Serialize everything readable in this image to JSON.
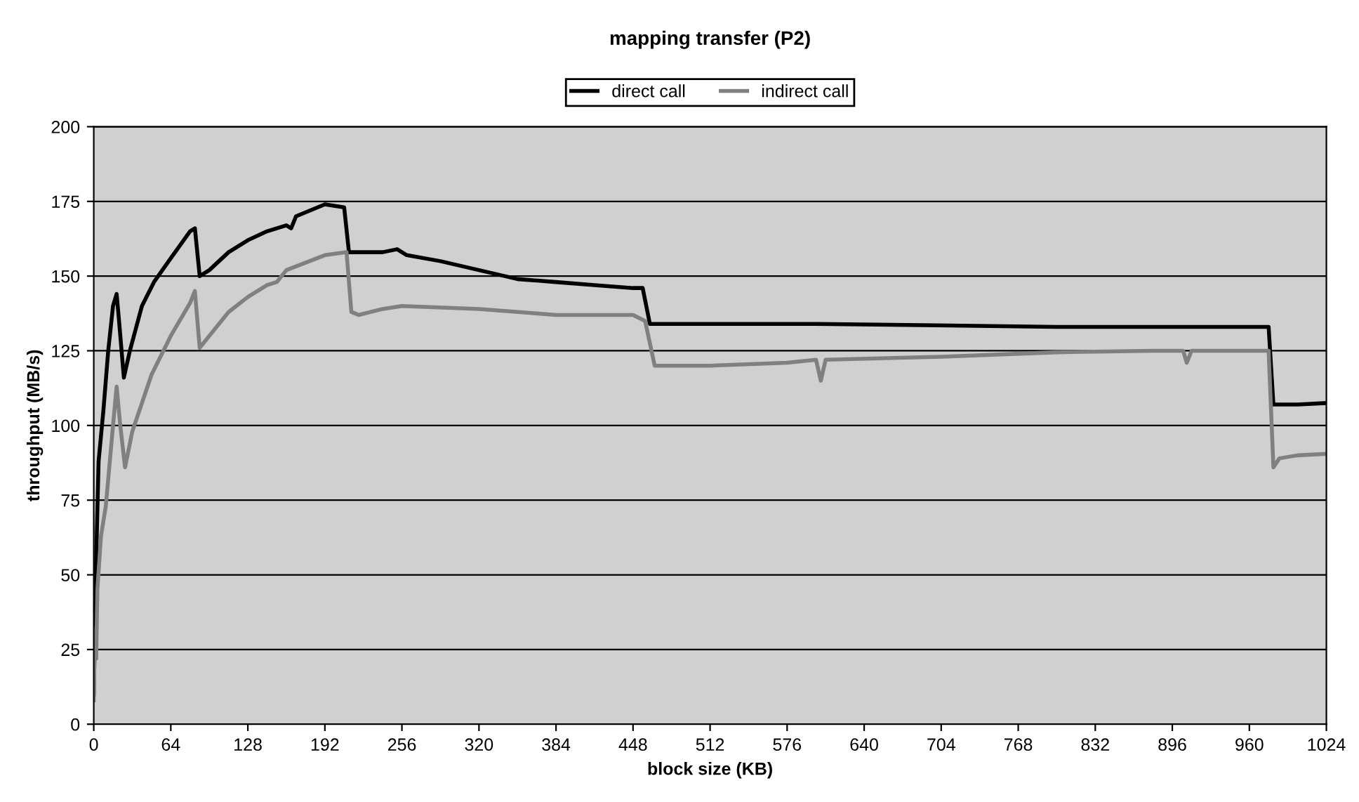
{
  "chart_data": {
    "type": "line",
    "title": "mapping transfer (P2)",
    "xlabel": "block size (KB)",
    "ylabel": "throughput (MB/s)",
    "xlim": [
      0,
      1024
    ],
    "xticks": [
      0,
      64,
      128,
      192,
      256,
      320,
      384,
      448,
      512,
      576,
      640,
      704,
      768,
      832,
      896,
      960,
      1024
    ],
    "ylim": [
      0,
      200
    ],
    "yticks": [
      0,
      25,
      50,
      75,
      100,
      125,
      150,
      175,
      200
    ],
    "grid": "y",
    "legend": "top",
    "marker": "none",
    "line_style": "solid",
    "series": [
      {
        "name": "direct call",
        "color": "#000000",
        "x": [
          0,
          2,
          4,
          8,
          12,
          16,
          19,
          21,
          25,
          30,
          40,
          50,
          64,
          80,
          84,
          88,
          96,
          112,
          128,
          144,
          160,
          164,
          168,
          192,
          208,
          212,
          224,
          240,
          252,
          260,
          288,
          320,
          352,
          384,
          416,
          448,
          456,
          462,
          512,
          600,
          700,
          800,
          900,
          976,
          980,
          1000,
          1024
        ],
        "values": [
          10,
          55,
          88,
          105,
          125,
          140,
          144,
          135,
          116,
          125,
          140,
          148,
          156,
          165,
          166,
          150,
          152,
          158,
          162,
          165,
          167,
          166,
          170,
          174,
          173,
          158,
          158,
          158,
          159,
          157,
          155,
          152,
          149,
          148,
          147,
          146,
          146,
          134,
          134,
          134,
          133.5,
          133,
          133,
          133,
          107,
          107,
          107.5
        ]
      },
      {
        "name": "indirect call",
        "color": "#808080",
        "x": [
          0,
          1,
          2,
          3,
          6,
          10,
          16,
          19,
          22,
          26,
          32,
          48,
          64,
          80,
          84,
          88,
          96,
          112,
          128,
          144,
          152,
          160,
          192,
          210,
          214,
          220,
          240,
          256,
          320,
          384,
          448,
          458,
          466,
          512,
          576,
          600,
          604,
          608,
          704,
          800,
          880,
          905,
          908,
          912,
          976,
          980,
          985,
          1000,
          1024
        ],
        "values": [
          8,
          32,
          22,
          45,
          63,
          73,
          100,
          113,
          100,
          86,
          98,
          117,
          130,
          141,
          145,
          126,
          130,
          138,
          143,
          147,
          148,
          152,
          157,
          158,
          138,
          137,
          139,
          140,
          139,
          137,
          137,
          135,
          120,
          120,
          121,
          122,
          115,
          122,
          123,
          124.5,
          125,
          125,
          121,
          125,
          125,
          86,
          89,
          90,
          90.5
        ]
      }
    ]
  }
}
